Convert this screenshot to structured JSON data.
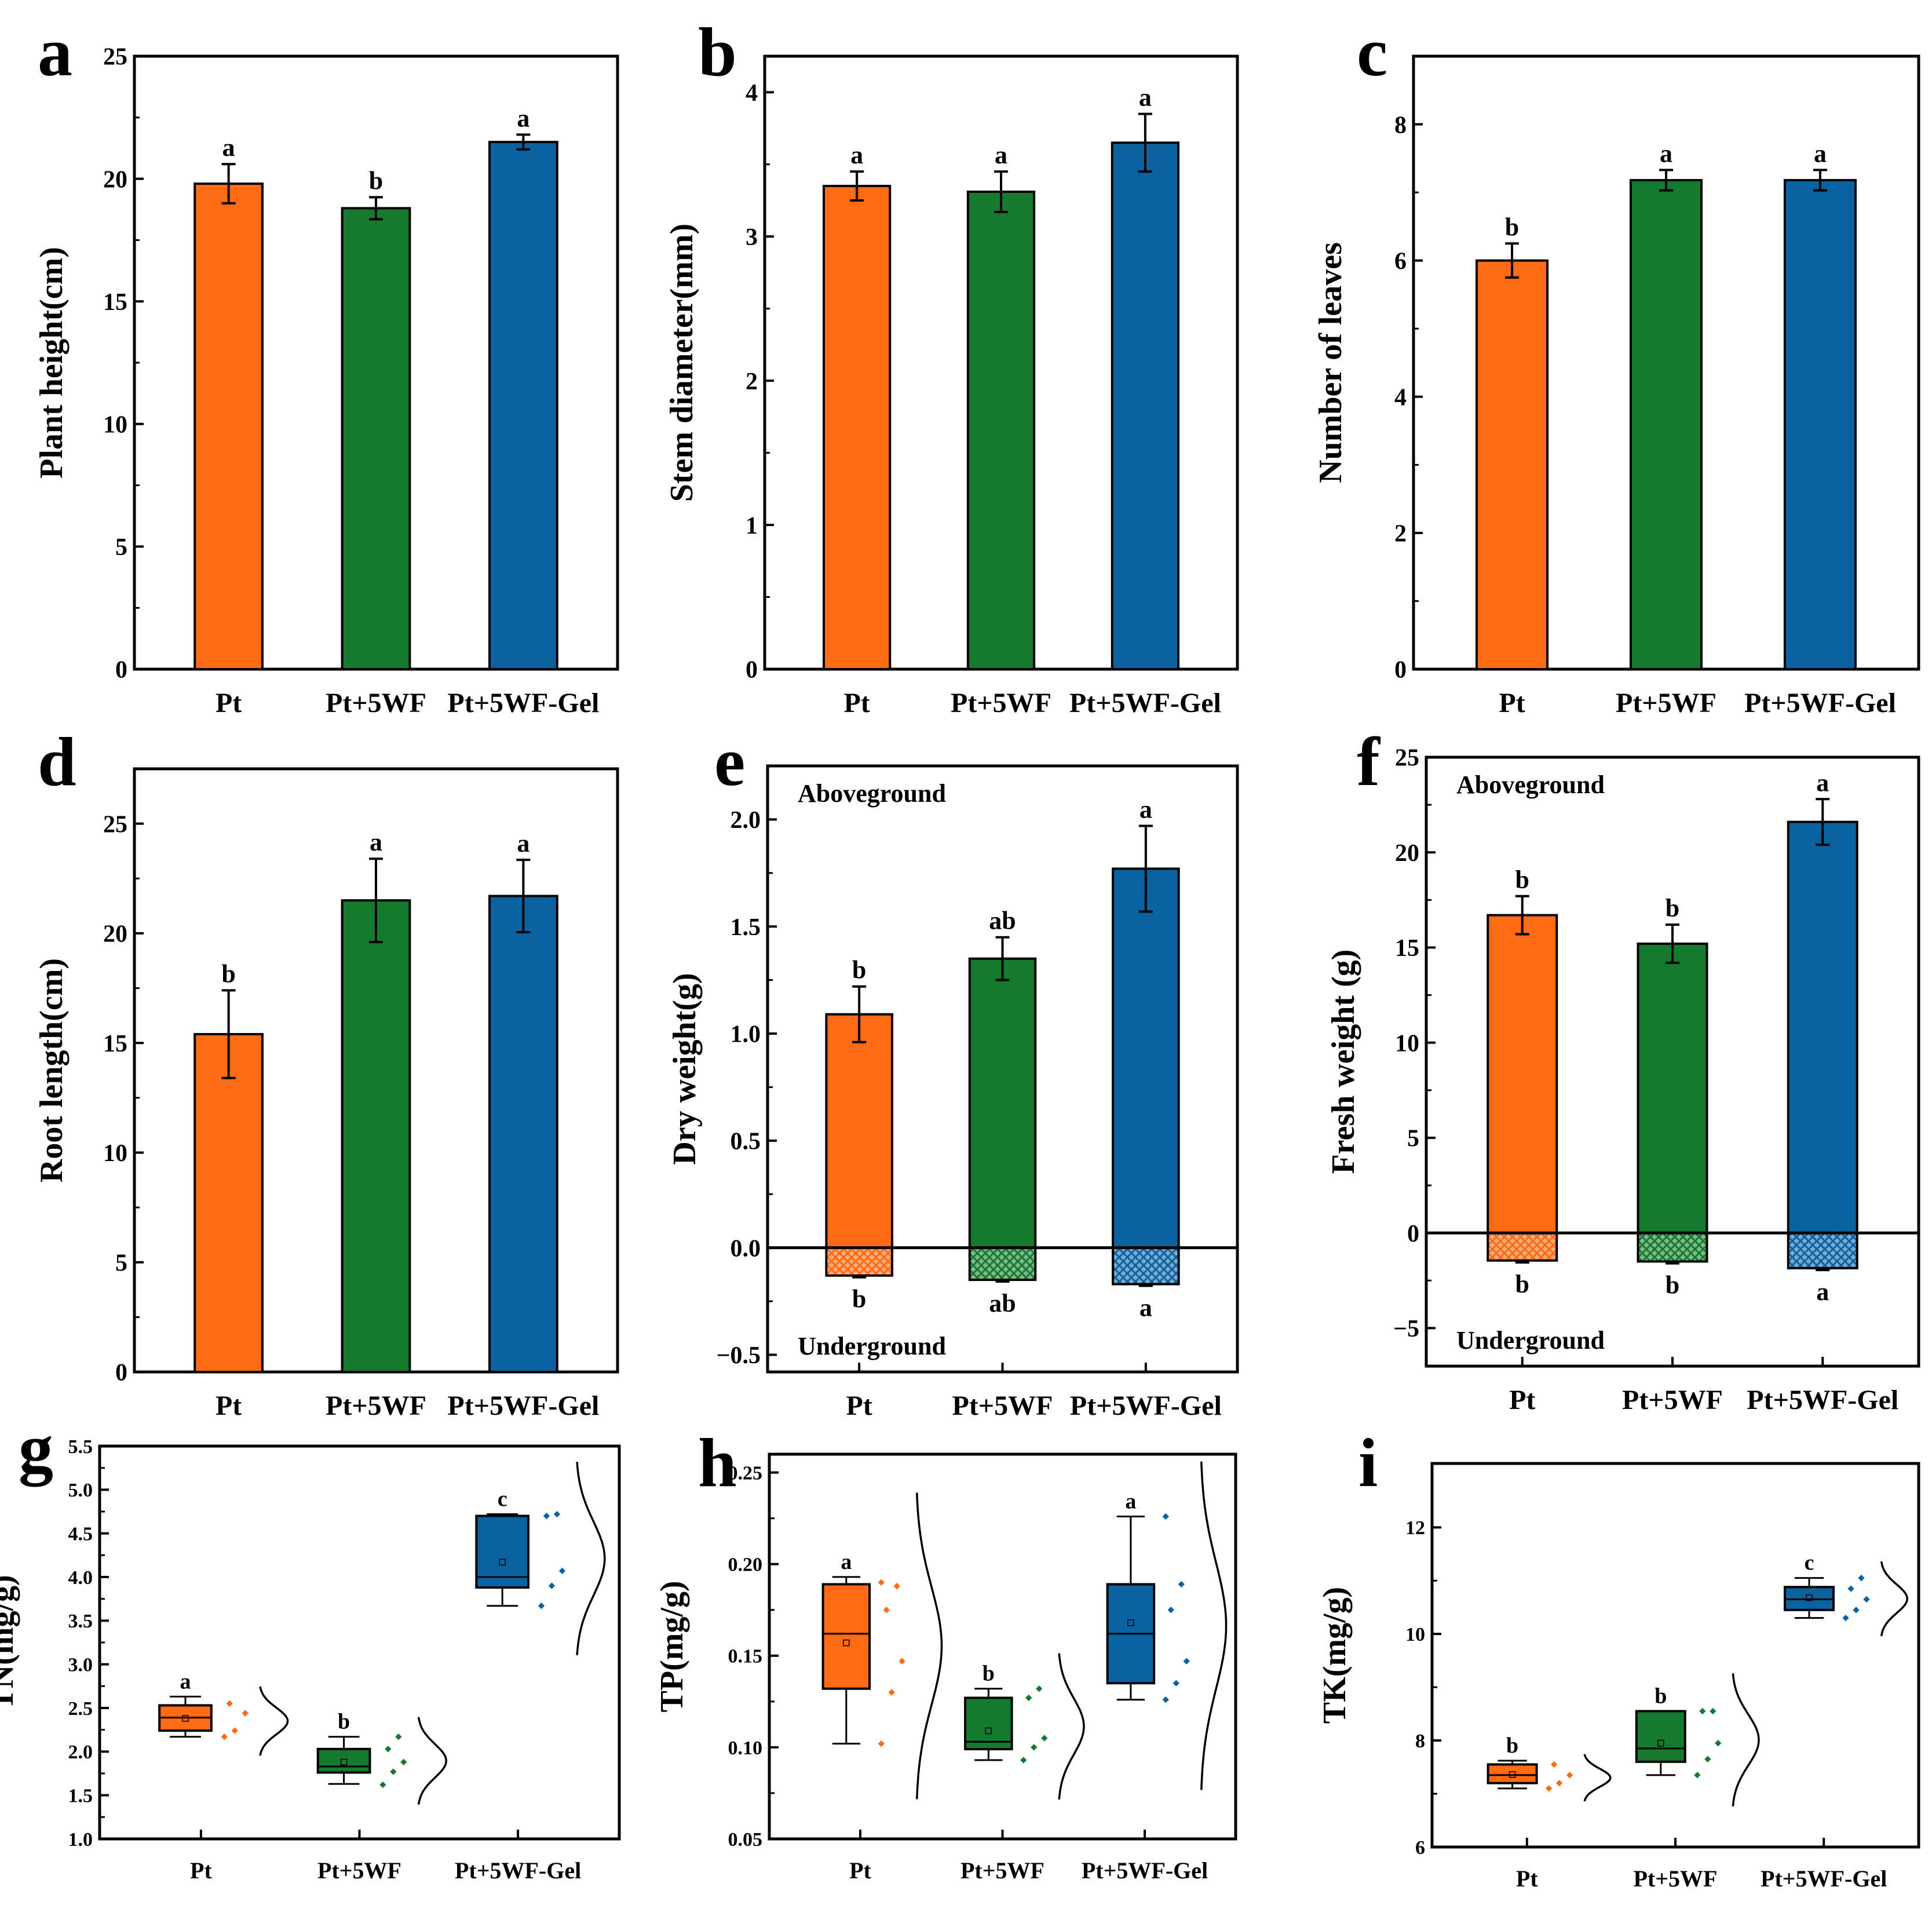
{
  "colors": {
    "orange": "#FF6A13",
    "green": "#157A2E",
    "blue": "#0A62A1",
    "curve": "#000000"
  },
  "chart_data": [
    {
      "id": "a",
      "panel_label": "a",
      "type": "bar",
      "ylabel": "Plant height(cm)",
      "categories": [
        "Pt",
        "Pt+5WF",
        "Pt+5WF-Gel"
      ],
      "ylim": [
        0,
        25
      ],
      "yticks": [
        0,
        5,
        10,
        15,
        20,
        25
      ],
      "yticklabels": [
        "0",
        "5",
        "10",
        "15",
        "20",
        "25"
      ],
      "values": [
        19.8,
        18.8,
        21.5
      ],
      "errors": [
        0.8,
        0.45,
        0.3
      ],
      "letters": [
        "a",
        "b",
        "a"
      ]
    },
    {
      "id": "b",
      "panel_label": "b",
      "type": "bar",
      "ylabel": "Stem diameter(mm)",
      "categories": [
        "Pt",
        "Pt+5WF",
        "Pt+5WF-Gel"
      ],
      "ylim": [
        0,
        4.25
      ],
      "yticks": [
        0,
        1,
        2,
        3,
        4
      ],
      "yticklabels": [
        "0",
        "1",
        "2",
        "3",
        "4"
      ],
      "values": [
        3.35,
        3.31,
        3.65
      ],
      "errors": [
        0.1,
        0.14,
        0.2
      ],
      "letters": [
        "a",
        "a",
        "a"
      ]
    },
    {
      "id": "c",
      "panel_label": "c",
      "type": "bar",
      "ylabel": "Number of leaves",
      "categories": [
        "Pt",
        "Pt+5WF",
        "Pt+5WF-Gel"
      ],
      "ylim": [
        0,
        9
      ],
      "yticks": [
        0,
        2,
        4,
        6,
        8
      ],
      "yticklabels": [
        "0",
        "2",
        "4",
        "6",
        "8"
      ],
      "values": [
        6.0,
        7.18,
        7.18
      ],
      "errors": [
        0.25,
        0.15,
        0.15
      ],
      "letters": [
        "b",
        "a",
        "a"
      ]
    },
    {
      "id": "d",
      "panel_label": "d",
      "type": "bar",
      "ylabel": "Root length(cm)",
      "categories": [
        "Pt",
        "Pt+5WF",
        "Pt+5WF-Gel"
      ],
      "ylim": [
        0,
        27.5
      ],
      "yticks": [
        0,
        5,
        10,
        15,
        20,
        25
      ],
      "yticklabels": [
        "0",
        "5",
        "10",
        "15",
        "20",
        "25"
      ],
      "values": [
        15.4,
        21.5,
        21.7
      ],
      "errors": [
        2.0,
        1.9,
        1.65
      ],
      "letters": [
        "b",
        "a",
        "a"
      ]
    },
    {
      "id": "e",
      "panel_label": "e",
      "type": "bar",
      "ylabel": "Dry weight(g)",
      "categories": [
        "Pt",
        "Pt+5WF",
        "Pt+5WF-Gel"
      ],
      "ylim": [
        -0.58,
        2.25
      ],
      "yticks": [
        -0.5,
        0.0,
        0.5,
        1.0,
        1.5,
        2.0
      ],
      "yticklabels": [
        "−0.5",
        "0.0",
        "0.5",
        "1.0",
        "1.5",
        "2.0"
      ],
      "values": [
        1.09,
        1.35,
        1.77
      ],
      "errors": [
        0.13,
        0.1,
        0.2
      ],
      "letters": [
        "b",
        "ab",
        "a"
      ],
      "under_values": [
        -0.13,
        -0.15,
        -0.17
      ],
      "under_errors": [
        0.008,
        0.008,
        0.008
      ],
      "under_letters": [
        "b",
        "ab",
        "a"
      ],
      "annotations": [
        "Aboveground",
        "Underground"
      ]
    },
    {
      "id": "f",
      "panel_label": "f",
      "type": "bar",
      "ylabel": "Fresh weight (g)",
      "categories": [
        "Pt",
        "Pt+5WF",
        "Pt+5WF-Gel"
      ],
      "ylim": [
        -7,
        25
      ],
      "yticks": [
        -5,
        0,
        5,
        10,
        15,
        20,
        25
      ],
      "yticklabels": [
        "−5",
        "0",
        "5",
        "10",
        "15",
        "20",
        "25"
      ],
      "values": [
        16.7,
        15.2,
        21.6
      ],
      "errors": [
        1.0,
        1.0,
        1.2
      ],
      "letters": [
        "b",
        "b",
        "a"
      ],
      "under_values": [
        -1.45,
        -1.5,
        -1.85
      ],
      "under_errors": [
        0.1,
        0.1,
        0.1
      ],
      "under_letters": [
        "b",
        "b",
        "a"
      ],
      "annotations": [
        "Aboveground",
        "Underground"
      ]
    },
    {
      "id": "g",
      "panel_label": "g",
      "type": "box",
      "ylabel": "TN(mg/g)",
      "categories": [
        "Pt",
        "Pt+5WF",
        "Pt+5WF-Gel"
      ],
      "ylim": [
        1.0,
        5.5
      ],
      "yticks": [
        1.0,
        1.5,
        2.0,
        2.5,
        3.0,
        3.5,
        4.0,
        4.5,
        5.0,
        5.5
      ],
      "yticklabels": [
        "1.0",
        "1.5",
        "2.0",
        "2.5",
        "3.0",
        "3.5",
        "4.0",
        "4.5",
        "5.0",
        "5.5"
      ],
      "boxes": [
        {
          "min": 2.17,
          "q1": 2.24,
          "median": 2.39,
          "q3": 2.53,
          "max": 2.63,
          "mean": 2.38,
          "points": [
            2.17,
            2.24,
            2.44,
            2.55
          ]
        },
        {
          "min": 1.63,
          "q1": 1.76,
          "median": 1.83,
          "q3": 2.03,
          "max": 2.17,
          "mean": 1.88,
          "points": [
            1.62,
            1.77,
            1.88,
            2.03,
            2.17
          ]
        },
        {
          "min": 3.67,
          "q1": 3.88,
          "median": 4.0,
          "q3": 4.7,
          "max": 4.72,
          "mean": 4.17,
          "points": [
            3.67,
            3.9,
            4.07,
            4.7,
            4.72
          ]
        }
      ],
      "letters": [
        "a",
        "b",
        "c"
      ]
    },
    {
      "id": "h",
      "panel_label": "h",
      "type": "box",
      "ylabel": "TP(mg/g)",
      "categories": [
        "Pt",
        "Pt+5WF",
        "Pt+5WF-Gel"
      ],
      "ylim": [
        0.05,
        0.26
      ],
      "yticks": [
        0.05,
        0.1,
        0.15,
        0.2,
        0.25
      ],
      "yticklabels": [
        "0.05",
        "0.10",
        "0.15",
        "0.20",
        "0.25"
      ],
      "boxes": [
        {
          "min": 0.102,
          "q1": 0.132,
          "median": 0.162,
          "q3": 0.189,
          "max": 0.193,
          "mean": 0.157,
          "points": [
            0.102,
            0.13,
            0.147,
            0.175,
            0.188,
            0.19
          ]
        },
        {
          "min": 0.093,
          "q1": 0.099,
          "median": 0.103,
          "q3": 0.127,
          "max": 0.132,
          "mean": 0.109,
          "points": [
            0.093,
            0.1,
            0.105,
            0.127,
            0.132
          ]
        },
        {
          "min": 0.126,
          "q1": 0.135,
          "median": 0.162,
          "q3": 0.189,
          "max": 0.226,
          "mean": 0.168,
          "points": [
            0.126,
            0.135,
            0.147,
            0.175,
            0.189,
            0.226
          ]
        }
      ],
      "letters": [
        "a",
        "b",
        "a"
      ]
    },
    {
      "id": "i",
      "panel_label": "i",
      "type": "box",
      "ylabel": "TK(mg/g)",
      "categories": [
        "Pt",
        "Pt+5WF",
        "Pt+5WF-Gel"
      ],
      "ylim": [
        6,
        13.2
      ],
      "yticks": [
        6,
        8,
        10,
        12
      ],
      "yticklabels": [
        "6",
        "8",
        "10",
        "12"
      ],
      "boxes": [
        {
          "min": 7.1,
          "q1": 7.2,
          "median": 7.35,
          "q3": 7.55,
          "max": 7.62,
          "mean": 7.36,
          "points": [
            7.1,
            7.2,
            7.35,
            7.55
          ]
        },
        {
          "min": 7.35,
          "q1": 7.6,
          "median": 7.85,
          "q3": 8.55,
          "max": 8.55,
          "mean": 7.95,
          "points": [
            7.35,
            7.65,
            7.95,
            8.55,
            8.55
          ]
        },
        {
          "min": 10.3,
          "q1": 10.45,
          "median": 10.65,
          "q3": 10.88,
          "max": 11.05,
          "mean": 10.68,
          "points": [
            10.3,
            10.45,
            10.65,
            10.85,
            11.05
          ]
        }
      ],
      "letters": [
        "b",
        "b",
        "c"
      ]
    }
  ]
}
